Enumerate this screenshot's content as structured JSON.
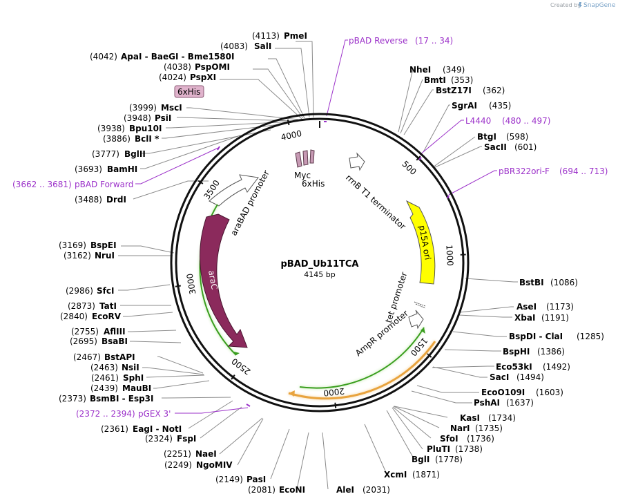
{
  "header": {
    "credit_prefix": "Created by",
    "brand": "SnapGene"
  },
  "plasmid": {
    "name": "pBAD_Ub11TCA",
    "length_label": "4145 bp",
    "total_bp": 4145
  },
  "colors": {
    "primer": "#9b30c9",
    "arac": "#8b2a5c",
    "p15a": "#ffff00",
    "promoter_green": "#3a9e1f",
    "ampr_orange": "#e8a33e"
  },
  "ticks": [
    {
      "pos": 500,
      "label": "500"
    },
    {
      "pos": 1000,
      "label": "1000"
    },
    {
      "pos": 1500,
      "label": "1500"
    },
    {
      "pos": 2000,
      "label": "2000"
    },
    {
      "pos": 2500,
      "label": "2500"
    },
    {
      "pos": 3000,
      "label": "3000"
    },
    {
      "pos": 3500,
      "label": "3500"
    },
    {
      "pos": 4000,
      "label": "4000"
    }
  ],
  "sites": [
    {
      "name": "PmeI",
      "pos": "(4113)"
    },
    {
      "name": "SalI",
      "pos": "(4083)"
    },
    {
      "name": "ApaI - BaeGI - Bme1580I",
      "pos": "(4042)"
    },
    {
      "name": "PspOMI",
      "pos": "(4038)"
    },
    {
      "name": "PspXI",
      "pos": "(4024)"
    },
    {
      "name": "MscI",
      "pos": "(3999)"
    },
    {
      "name": "PsiI",
      "pos": "(3948)"
    },
    {
      "name": "Bpu10I",
      "pos": "(3938)"
    },
    {
      "name": "BclI *",
      "pos": "(3886)"
    },
    {
      "name": "BglII",
      "pos": "(3777)"
    },
    {
      "name": "BamHI",
      "pos": "(3693)"
    },
    {
      "name": "DrdI",
      "pos": "(3488)"
    },
    {
      "name": "BspEI",
      "pos": "(3169)"
    },
    {
      "name": "NruI",
      "pos": "(3162)"
    },
    {
      "name": "SfcI",
      "pos": "(2986)"
    },
    {
      "name": "TatI",
      "pos": "(2873)"
    },
    {
      "name": "EcoRV",
      "pos": "(2840)"
    },
    {
      "name": "AflIII",
      "pos": "(2755)"
    },
    {
      "name": "BsaBI",
      "pos": "(2695)"
    },
    {
      "name": "BstAPI",
      "pos": "(2467)"
    },
    {
      "name": "NsiI",
      "pos": "(2463)"
    },
    {
      "name": "SphI",
      "pos": "(2461)"
    },
    {
      "name": "MauBI",
      "pos": "(2439)"
    },
    {
      "name": "BsmBI - Esp3I",
      "pos": "(2373)"
    },
    {
      "name": "EagI - NotI",
      "pos": "(2361)"
    },
    {
      "name": "FspI",
      "pos": "(2324)"
    },
    {
      "name": "NaeI",
      "pos": "(2251)"
    },
    {
      "name": "NgoMIV",
      "pos": "(2249)"
    },
    {
      "name": "PasI",
      "pos": "(2149)"
    },
    {
      "name": "EcoNI",
      "pos": "(2081)"
    },
    {
      "name": "AleI",
      "pos": "(2031)"
    },
    {
      "name": "XcmI",
      "pos": "(1871)"
    },
    {
      "name": "BglI",
      "pos": "(1778)"
    },
    {
      "name": "PluTI",
      "pos": "(1738)"
    },
    {
      "name": "SfoI",
      "pos": "(1736)"
    },
    {
      "name": "NarI",
      "pos": "(1735)"
    },
    {
      "name": "KasI",
      "pos": "(1734)"
    },
    {
      "name": "PshAI",
      "pos": "(1637)"
    },
    {
      "name": "EcoO109I",
      "pos": "(1603)"
    },
    {
      "name": "SacI",
      "pos": "(1494)"
    },
    {
      "name": "Eco53kI",
      "pos": "(1492)"
    },
    {
      "name": "BspHI",
      "pos": "(1386)"
    },
    {
      "name": "BspDI - ClaI",
      "pos": "(1285)"
    },
    {
      "name": "XbaI",
      "pos": "(1191)"
    },
    {
      "name": "AseI",
      "pos": "(1173)"
    },
    {
      "name": "BstBI",
      "pos": "(1086)"
    },
    {
      "name": "SacII",
      "pos": "(601)"
    },
    {
      "name": "BtgI",
      "pos": "(598)"
    },
    {
      "name": "SgrAI",
      "pos": "(435)"
    },
    {
      "name": "BstZ17I",
      "pos": "(362)"
    },
    {
      "name": "BmtI",
      "pos": "(353)"
    },
    {
      "name": "NheI",
      "pos": "(349)"
    }
  ],
  "primers": [
    {
      "name": "pBAD Reverse",
      "range": "(17 .. 34)"
    },
    {
      "name": "L4440",
      "range": "(480 .. 497)"
    },
    {
      "name": "pBR322ori-F",
      "range": "(694 .. 713)"
    },
    {
      "name": "pBAD Forward",
      "range": "(3662 .. 3681)"
    },
    {
      "name": "pGEX 3'",
      "range": "(2372 .. 2394)"
    }
  ],
  "features": {
    "sixhis_box": "6xHis",
    "myc": "Myc",
    "sixhis": "6xHis",
    "rrnb": "rrnB T1 terminator",
    "p15a": "p15A ori",
    "arabad": "araBAD promoter",
    "arac": "araC",
    "tet": "tet promoter",
    "ampr_prom": "AmpR promoter"
  }
}
